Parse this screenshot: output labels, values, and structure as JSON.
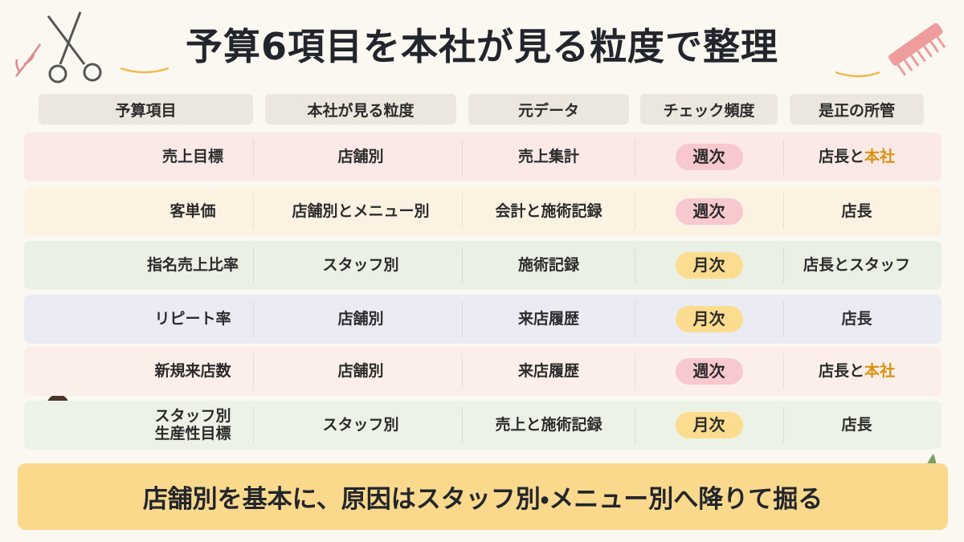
{
  "title": "予算6項目を本社が見る粒度で整理",
  "table": {
    "headers": [
      "予算項目",
      "本社が見る粒度",
      "元データ",
      "チェック頻度",
      "是正の所管"
    ],
    "rows": [
      {
        "item": "売上目標",
        "granularity": "店舗別",
        "source": "売上集計",
        "frequency": "週次",
        "frequency_color": "#f7c9cf",
        "owner": [
          {
            "text": "店長と"
          },
          {
            "text": "本社",
            "accent": true
          }
        ],
        "color": "#fbe9e7"
      },
      {
        "item": "客単価",
        "granularity": "店舗別とメニュー別",
        "source": "会計と施術記録",
        "frequency": "週次",
        "frequency_color": "#f7c9cf",
        "owner": [
          {
            "text": "店長"
          }
        ],
        "color": "#fcf2e1"
      },
      {
        "item": "指名売上比率",
        "granularity": "スタッフ別",
        "source": "施術記録",
        "frequency": "月次",
        "frequency_color": "#fcdc8e",
        "owner": [
          {
            "text": "店長とスタッフ"
          }
        ],
        "color": "#eaf0e4"
      },
      {
        "item": "リピート率",
        "granularity": "店舗別",
        "source": "来店履歴",
        "frequency": "月次",
        "frequency_color": "#fcdc8e",
        "owner": [
          {
            "text": "店長"
          }
        ],
        "color": "#ebebf4"
      },
      {
        "item": "新規来店数",
        "granularity": "店舗別",
        "source": "来店履歴",
        "frequency": "週次",
        "frequency_color": "#f7c9cf",
        "owner": [
          {
            "text": "店長と"
          },
          {
            "text": "本社",
            "accent": true
          }
        ],
        "color": "#fcefe9"
      },
      {
        "item": "スタッフ別\n生産性目標",
        "granularity": "スタッフ別",
        "source": "売上と施術記録",
        "frequency": "月次",
        "frequency_color": "#fcdc8e",
        "owner": [
          {
            "text": "店長"
          }
        ],
        "color": "#edf2e6"
      }
    ]
  },
  "footer": "店舗別を基本に、原因はスタッフ別・メニュー別へ降りて掘る"
}
